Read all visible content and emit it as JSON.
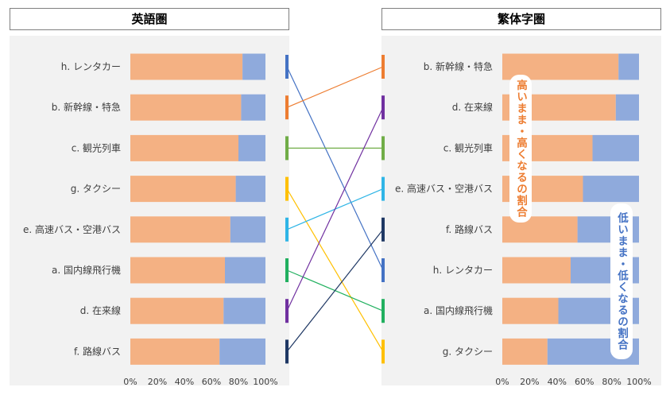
{
  "panels": {
    "left_title": "英語圏",
    "right_title": "繁体字圏"
  },
  "callouts": {
    "high": "高いまま・高くなるの割合",
    "low": "低いまま・低くなるの割合"
  },
  "colors": {
    "high": "#f4b183",
    "low": "#8faadc",
    "panel_bg": "#f2f2f2",
    "high_text": "#ed7d31",
    "low_text": "#4472c4"
  },
  "chart_data": [
    {
      "type": "bar",
      "stacked": true,
      "orientation": "horizontal",
      "title": "英語圏",
      "categories": [
        "h. レンタカー",
        "b. 新幹線・特急",
        "c. 観光列車",
        "g. タクシー",
        "e. 高速バス・空港バス",
        "a. 国内線飛行機",
        "d. 在来線",
        "f. 路線バス"
      ],
      "series": [
        {
          "name": "高いまま・高くなるの割合",
          "values": [
            83,
            82,
            80,
            78,
            74,
            70,
            69,
            66
          ]
        },
        {
          "name": "低いまま・低くなるの割合",
          "values": [
            17,
            18,
            20,
            22,
            26,
            30,
            31,
            34
          ]
        }
      ],
      "xticks": [
        "0%",
        "20%",
        "40%",
        "60%",
        "80%",
        "100%"
      ],
      "xlim": [
        0,
        100
      ]
    },
    {
      "type": "bar",
      "stacked": true,
      "orientation": "horizontal",
      "title": "繁体字圏",
      "categories": [
        "b. 新幹線・特急",
        "d. 在来線",
        "c. 観光列車",
        "e. 高速バス・空港バス",
        "f. 路線バス",
        "h. レンタカー",
        "a. 国内線飛行機",
        "g. タクシー"
      ],
      "series": [
        {
          "name": "高いまま・高くなるの割合",
          "values": [
            85,
            83,
            66,
            59,
            55,
            50,
            41,
            33
          ]
        },
        {
          "name": "低いまま・低くなるの割合",
          "values": [
            15,
            17,
            34,
            41,
            45,
            50,
            59,
            67
          ]
        }
      ],
      "xticks": [
        "0%",
        "20%",
        "40%",
        "60%",
        "80%",
        "100%"
      ],
      "xlim": [
        0,
        100
      ]
    }
  ],
  "rank_links": [
    {
      "from": 0,
      "to": 5,
      "color": "#4472c4"
    },
    {
      "from": 1,
      "to": 0,
      "color": "#ed7d31"
    },
    {
      "from": 2,
      "to": 2,
      "color": "#70ad47"
    },
    {
      "from": 3,
      "to": 7,
      "color": "#ffc000"
    },
    {
      "from": 4,
      "to": 3,
      "color": "#2fb5e6"
    },
    {
      "from": 5,
      "to": 6,
      "color": "#21b05f"
    },
    {
      "from": 6,
      "to": 1,
      "color": "#7030a0"
    },
    {
      "from": 7,
      "to": 4,
      "color": "#1f3864"
    }
  ]
}
